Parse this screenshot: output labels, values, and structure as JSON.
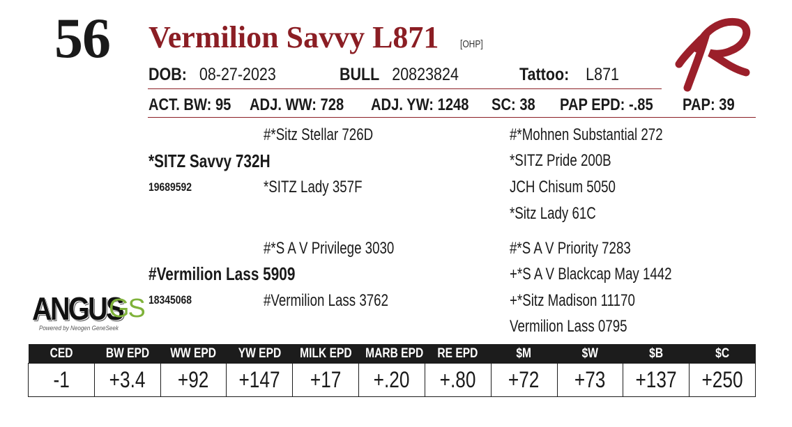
{
  "lot": {
    "number": "56"
  },
  "animal": {
    "name": "Vermilion Savvy L871",
    "tag": "[OHP]",
    "dob_label": "DOB:",
    "dob": "08-27-2023",
    "bull_label": "BULL",
    "registration": "20823824",
    "tattoo_label": "Tattoo:",
    "tattoo": "L871"
  },
  "stats": [
    {
      "label": "ACT. BW:",
      "value": "95"
    },
    {
      "label": "ADJ. WW:",
      "value": "728"
    },
    {
      "label": "ADJ. YW:",
      "value": "1248"
    },
    {
      "label": "SC:",
      "value": "38"
    },
    {
      "label": "PAP EPD:",
      "value": "-.85"
    },
    {
      "label": "PAP:",
      "value": "39"
    }
  ],
  "pedigree": {
    "sire": {
      "name": "*SITZ Savvy 732H",
      "reg": "19689592"
    },
    "sire_sire": "#*Sitz Stellar 726D",
    "sire_dam": "*SITZ Lady 357F",
    "sss": "#*Mohnen Substantial 272",
    "ssd": "*SITZ Pride 200B",
    "sds": "JCH Chisum 5050",
    "sdd": "*Sitz Lady 61C",
    "dam": {
      "name": "#Vermilion Lass 5909",
      "reg": "18345068"
    },
    "dam_sire": "#*S A V Privilege 3030",
    "dam_dam": "#Vermilion Lass 3762",
    "dss": "#*S A V Priority 7283",
    "dsd": "+*S A V Blackcap May 1442",
    "dds": "+*Sitz Madison 11170",
    "ddd": "Vermilion Lass 0795"
  },
  "angus_logo": {
    "word": "ANGUS",
    "suffix": "GS",
    "tagline": "Powered by Neogen GeneSeek"
  },
  "epd": {
    "headers": [
      "CED",
      "BW EPD",
      "WW EPD",
      "YW EPD",
      "MILK EPD",
      "MARB EPD",
      "RE EPD",
      "$M",
      "$W",
      "$B",
      "$C"
    ],
    "values": [
      "-1",
      "+3.4",
      "+92",
      "+147",
      "+17",
      "+.20",
      "+.80",
      "+72",
      "+73",
      "+137",
      "+250"
    ]
  },
  "colors": {
    "accent": "#8b1e24",
    "header_bg": "#1c1c1c",
    "logo_green": "#7fb23a"
  }
}
